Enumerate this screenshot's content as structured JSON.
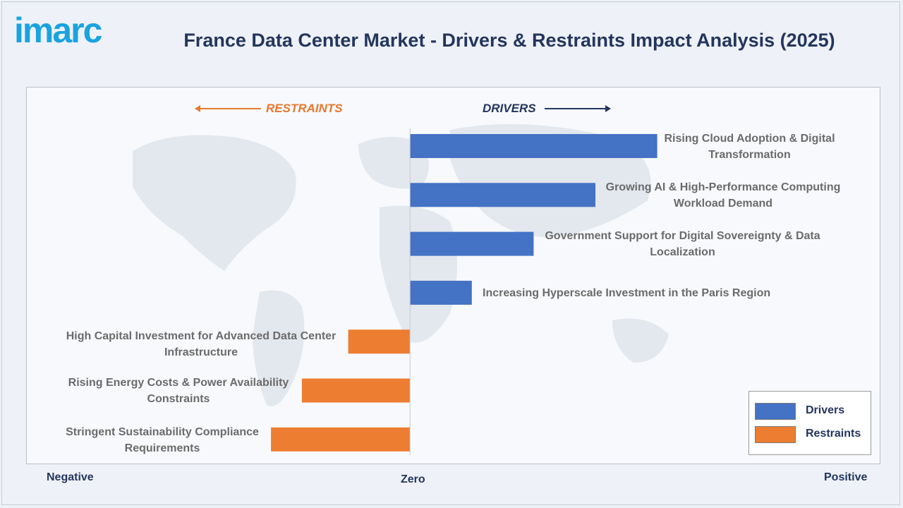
{
  "header": {
    "logo": "imarc",
    "title": "France Data Center Market - Drivers & Restraints Impact Analysis (2025)"
  },
  "direction": {
    "restraints": "RESTRAINTS",
    "drivers": "DRIVERS"
  },
  "axis_words": {
    "negative": "Negative",
    "zero": "Zero",
    "positive": "Positive"
  },
  "colors": {
    "drivers": "#4472c4",
    "restraints": "#ed7d31",
    "title": "#24355e"
  },
  "chart_data": {
    "type": "bar",
    "orientation": "horizontal",
    "categories": [
      "Rising Cloud Adoption & Digital Transformation",
      "Growing AI & High-Performance Computing Workload Demand",
      "Government Support for Digital Sovereignty & Data Localization",
      "Increasing Hyperscale Investment in the Paris Region",
      "High Capital Investment for Advanced Data Center Infrastructure",
      "Rising Energy Costs & Power Availability Constraints",
      "Stringent Sustainability Compliance Requirements"
    ],
    "series": [
      {
        "name": "Drivers",
        "values": [
          4,
          3,
          2,
          1,
          null,
          null,
          null
        ]
      },
      {
        "name": "Restraints",
        "values": [
          null,
          null,
          null,
          null,
          -1,
          -1.75,
          -2.25
        ]
      }
    ],
    "xlim": [
      -6.2,
      7.6
    ],
    "grid": false,
    "legend": "bottom-right"
  }
}
